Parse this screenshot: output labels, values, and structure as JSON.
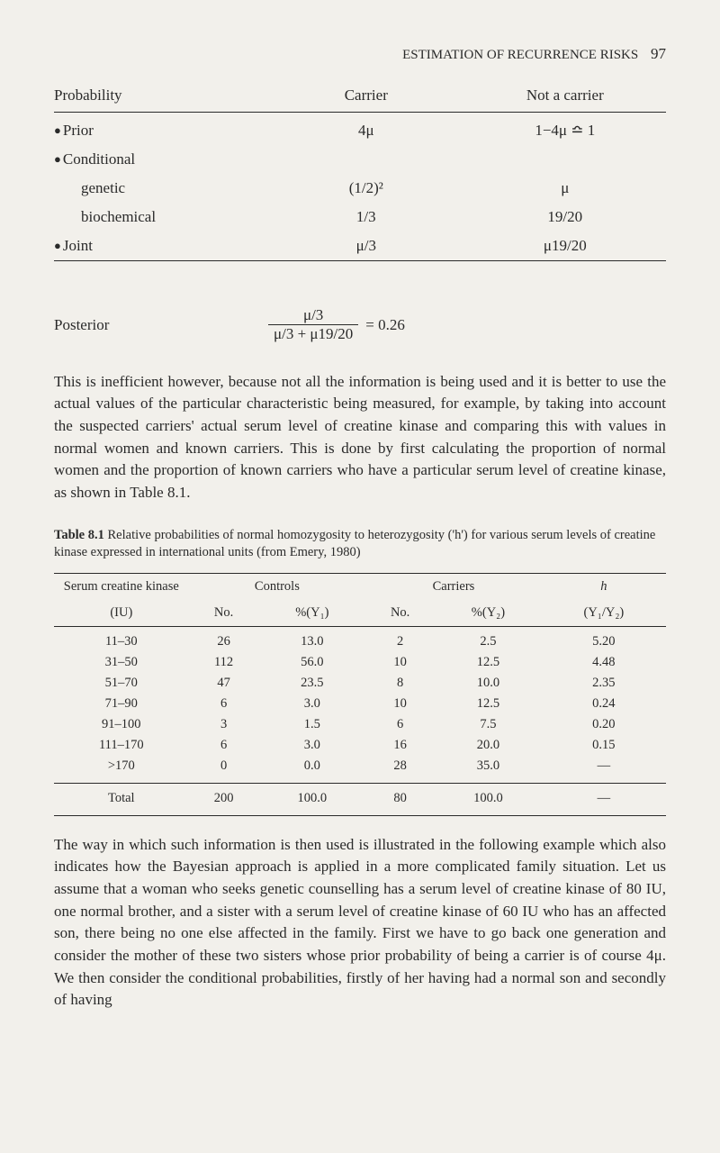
{
  "page_header": {
    "title": "ESTIMATION OF RECURRENCE RISKS",
    "page_number": "97"
  },
  "prob_table": {
    "headers": [
      "Probability",
      "Carrier",
      "Not a carrier"
    ],
    "rows": [
      {
        "label": "Prior",
        "bullet": true,
        "indent": false,
        "carrier": "4μ",
        "not_carrier": "1−4μ ≏ 1",
        "first": true
      },
      {
        "label": "Conditional",
        "bullet": true,
        "indent": false,
        "carrier": "",
        "not_carrier": ""
      },
      {
        "label": "genetic",
        "bullet": false,
        "indent": true,
        "carrier": "(1/2)²",
        "not_carrier": "μ"
      },
      {
        "label": "biochemical",
        "bullet": false,
        "indent": true,
        "carrier": "1/3",
        "not_carrier": "19/20"
      },
      {
        "label": "Joint",
        "bullet": true,
        "indent": false,
        "carrier": "μ/3",
        "not_carrier": "μ19/20",
        "last": true
      }
    ]
  },
  "posterior": {
    "label": "Posterior",
    "numerator": "μ/3",
    "denominator": "μ/3 + μ19/20",
    "equals": "= 0.26"
  },
  "paragraph1": "This is inefficient however, because not all the information is being used and it is better to use the actual values of the particular characteristic being measured, for example, by taking into account the suspected carriers' actual serum level of creatine kinase and comparing this with values in normal women and known carriers. This is done by first calculating the proportion of normal women and the proportion of known carriers who have a particular serum level of creatine kinase, as shown in Table 8.1.",
  "table_caption": {
    "bold": "Table 8.1",
    "rest": " Relative probabilities of normal homozygosity to heterozygosity ('h') for various serum levels of creatine kinase expressed in international units (from Emery, 1980)"
  },
  "data_table": {
    "header_row1": [
      "Serum creatine kinase",
      "Controls",
      "Carriers",
      "h"
    ],
    "header_row2": [
      "(IU)",
      "No.",
      "%(Y₁)",
      "No.",
      "%(Y₂)",
      "(Y₁/Y₂)"
    ],
    "rows": [
      [
        "11–30",
        "26",
        "13.0",
        "2",
        "2.5",
        "5.20"
      ],
      [
        "31–50",
        "112",
        "56.0",
        "10",
        "12.5",
        "4.48"
      ],
      [
        "51–70",
        "47",
        "23.5",
        "8",
        "10.0",
        "2.35"
      ],
      [
        "71–90",
        "6",
        "3.0",
        "10",
        "12.5",
        "0.24"
      ],
      [
        "91–100",
        "3",
        "1.5",
        "6",
        "7.5",
        "0.20"
      ],
      [
        "111–170",
        "6",
        "3.0",
        "16",
        "20.0",
        "0.15"
      ],
      [
        ">170",
        "0",
        "0.0",
        "28",
        "35.0",
        "—"
      ]
    ],
    "total_row": [
      "Total",
      "200",
      "100.0",
      "80",
      "100.0",
      "—"
    ]
  },
  "paragraph2": "The way in which such information is then used is illustrated in the following example which also indicates how the Bayesian approach is applied in a more complicated family situation. Let us assume that a woman who seeks genetic counselling has a serum level of creatine kinase of 80 IU, one normal brother, and a sister with a serum level of creatine kinase of 60 IU who has an affected son, there being no one else affected in the family. First we have to go back one generation and consider the mother of these two sisters whose prior probability of being a carrier is of course 4μ. We then consider the conditional probabilities, firstly of her having had a normal son and secondly of having"
}
